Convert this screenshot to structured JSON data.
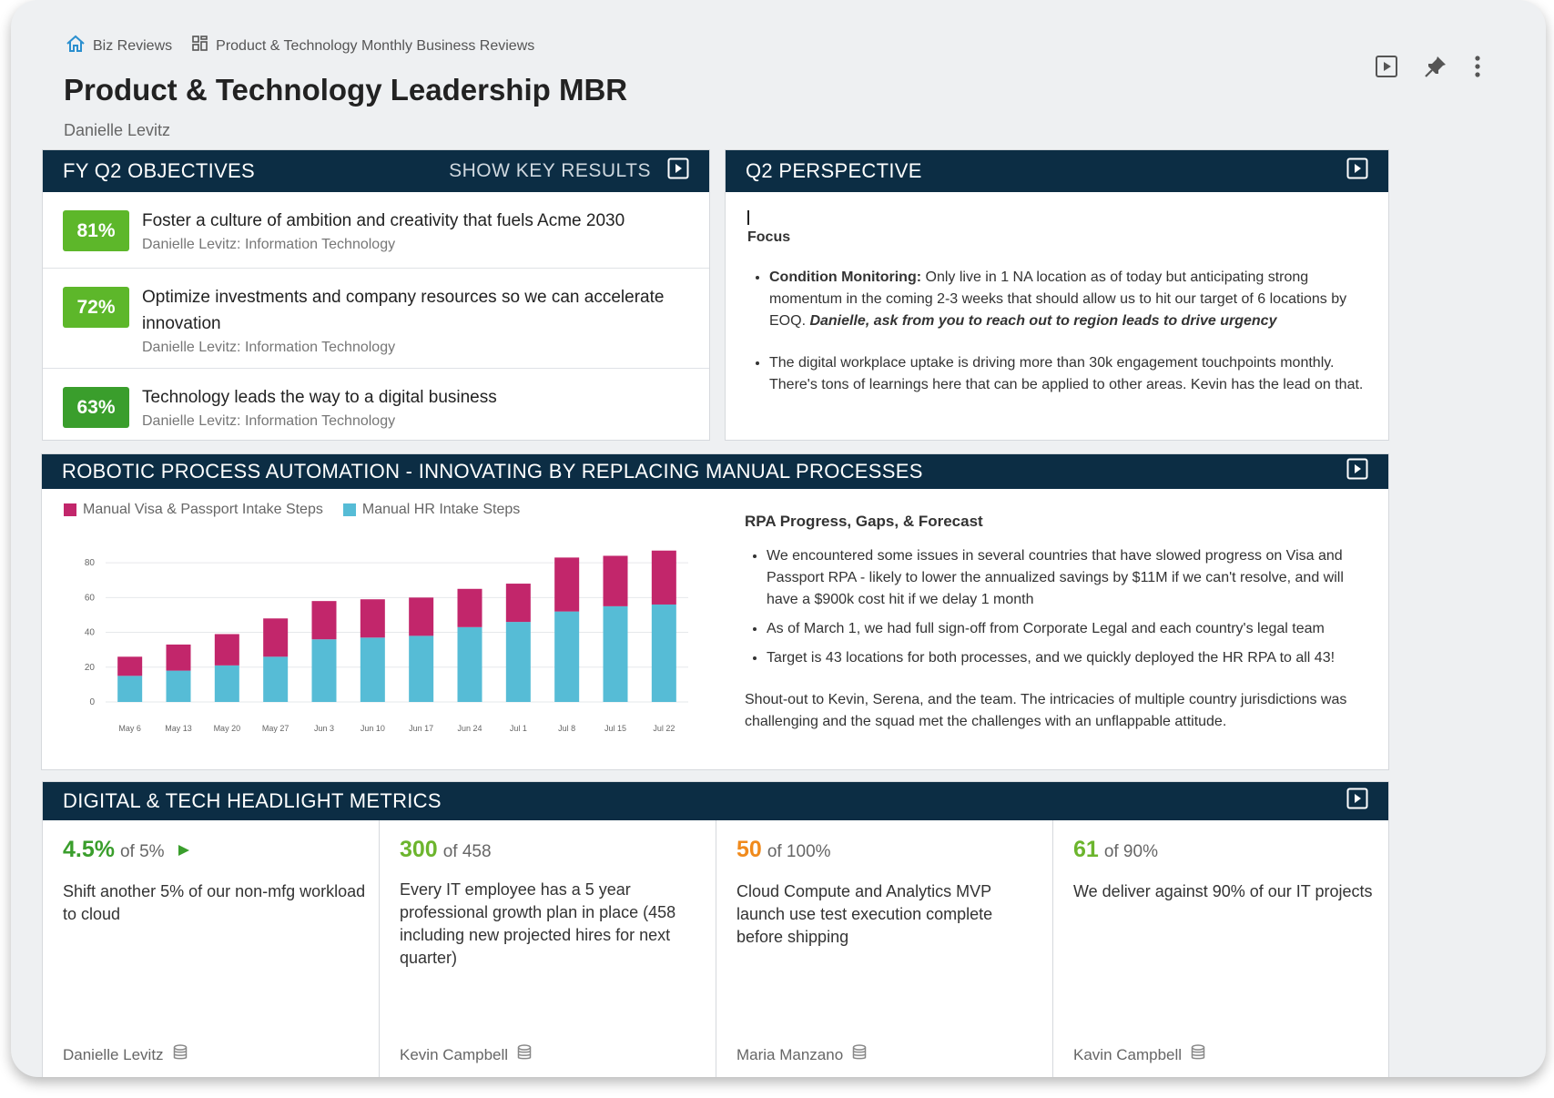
{
  "breadcrumbs": [
    {
      "label": "Biz Reviews",
      "icon": "home-icon"
    },
    {
      "label": "Product & Technology Monthly Business Reviews",
      "icon": "dashboard-icon"
    }
  ],
  "page": {
    "title": "Product & Technology Leadership MBR",
    "owner": "Danielle Levitz"
  },
  "top_actions": [
    "present-icon",
    "pin-icon",
    "more-icon"
  ],
  "objectives": {
    "title": "FY Q2 OBJECTIVES",
    "show_key_results": "SHOW KEY RESULTS",
    "items": [
      {
        "pct": "81%",
        "title": "Foster a culture of ambition and creativity that fuels Acme 2030",
        "owner": "Danielle Levitz: Information Technology"
      },
      {
        "pct": "72%",
        "title": "Optimize investments and company resources so we can accelerate innovation",
        "owner": "Danielle Levitz: Information Technology"
      },
      {
        "pct": "63%",
        "title": "Technology leads the way to a digital business",
        "owner": "Danielle Levitz: Information Technology"
      }
    ]
  },
  "perspective": {
    "title": "Q2 PERSPECTIVE",
    "focus": "Focus",
    "bullet1_bold": "Condition Monitoring:",
    "bullet1_text": " Only live in 1 NA location as of today but anticipating strong momentum in the coming 2-3 weeks that should allow us to hit our target of 6 locations by EOQ. ",
    "bullet1_italic": "Danielle, ask from you to reach out to region leads to drive urgency",
    "bullet2": "The digital workplace uptake is driving more than 30k engagement touchpoints monthly. There's tons of learnings here that can be applied to other areas. Kevin has the lead on that."
  },
  "rpa": {
    "title": "ROBOTIC PROCESS AUTOMATION - INNOVATING BY REPLACING MANUAL PROCESSES",
    "heading": "RPA Progress, Gaps, & Forecast",
    "bullets": [
      "We encountered some issues in several countries that have slowed progress on Visa and Passport RPA - likely to lower the annualized savings by $11M if we can't resolve, and will have a $900k cost hit if we delay 1 month",
      "As of March 1, we had  full sign-off from Corporate Legal and each country's legal team",
      "Target is 43 locations for both processes, and we quickly deployed the HR RPA to all 43!"
    ],
    "shoutout": "Shout-out to Kevin, Serena, and the team. The intricacies of multiple country jurisdictions was challenging and the squad met the challenges with an unflappable attitude."
  },
  "chart_data": {
    "type": "bar",
    "stacked": true,
    "categories": [
      "May 6",
      "May 13",
      "May 20",
      "May 27",
      "Jun 3",
      "Jun 10",
      "Jun 17",
      "Jun 24",
      "Jul 1",
      "Jul 8",
      "Jul 15",
      "Jul 22"
    ],
    "series": [
      {
        "name": "Manual HR Intake Steps",
        "color": "#56bcd6",
        "values": [
          15,
          18,
          21,
          26,
          36,
          37,
          38,
          43,
          46,
          52,
          55,
          56
        ]
      },
      {
        "name": "Manual Visa & Passport Intake Steps",
        "color": "#c2266b",
        "values": [
          11,
          15,
          18,
          22,
          22,
          22,
          22,
          22,
          22,
          31,
          29,
          31
        ]
      }
    ],
    "yticks": [
      0,
      20,
      40,
      60,
      80
    ],
    "ylim": [
      0,
      90
    ],
    "legend_position": "top-left",
    "grid": true
  },
  "metrics": {
    "title": "DIGITAL & TECH HEADLIGHT METRICS",
    "items": [
      {
        "value": "4.5%",
        "of": "of 5%",
        "color": "#3a9e2c",
        "desc": "Shift another 5% of our non-mfg workload to cloud",
        "owner": "Danielle Levitz",
        "trend": "play-arrow-icon"
      },
      {
        "value": "300",
        "of": "of 458",
        "color": "#6cb52d",
        "desc": "Every IT employee has a 5 year professional growth plan in place (458 including new projected hires for next quarter)",
        "owner": "Kevin Campbell"
      },
      {
        "value": "50",
        "of": "of 100%",
        "color": "#f08a1c",
        "desc": "Cloud Compute and Analytics MVP launch use test execution complete before shipping",
        "owner": "Maria Manzano"
      },
      {
        "value": "61",
        "of": "of 90%",
        "color": "#6cb52d",
        "desc": "We deliver against 90% of our IT projects",
        "owner": "Kavin Campbell"
      }
    ]
  }
}
